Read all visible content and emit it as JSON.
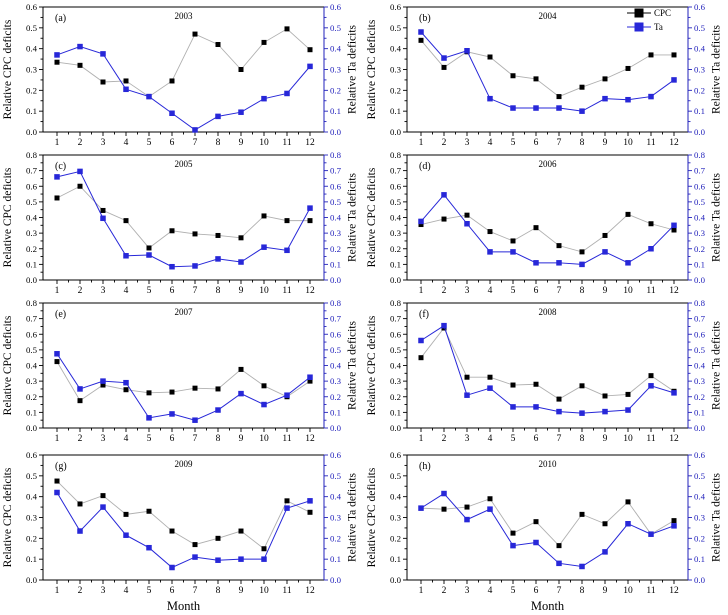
{
  "figure": {
    "xlabel": "Month",
    "left_ylabel": "Relative CPC deficits",
    "right_ylabel": "Relative Ta deficits",
    "colors": {
      "frame": "#000000",
      "cpc_marker": "#000000",
      "cpc_line": "#b0b0b0",
      "ta_series": "#2727d8",
      "right_axis_blue": "#2222bb",
      "background": "#ffffff"
    },
    "legend": [
      {
        "label": "CPC",
        "marker_color": "#000000",
        "line_color": "#000000"
      },
      {
        "label": "Ta",
        "marker_color": "#2727d8",
        "line_color": "#2727d8"
      }
    ]
  },
  "chart_data": [
    {
      "type": "line",
      "panel": "(a)",
      "title": "2003",
      "legend": false,
      "x": [
        1,
        2,
        3,
        4,
        5,
        6,
        7,
        8,
        9,
        10,
        11,
        12
      ],
      "ylim": [
        0,
        0.6
      ],
      "yticks": [
        "0.0",
        "0.1",
        "0.2",
        "0.3",
        "0.4",
        "0.5",
        "0.6"
      ],
      "series": [
        {
          "name": "CPC",
          "values": [
            0.335,
            0.32,
            0.24,
            0.245,
            0.17,
            0.245,
            0.47,
            0.42,
            0.3,
            0.43,
            0.495,
            0.395
          ]
        },
        {
          "name": "Ta",
          "values": [
            0.37,
            0.41,
            0.375,
            0.205,
            0.17,
            0.09,
            0.01,
            0.075,
            0.095,
            0.16,
            0.185,
            0.315
          ]
        }
      ]
    },
    {
      "type": "line",
      "panel": "(b)",
      "title": "2004",
      "legend": true,
      "x": [
        1,
        2,
        3,
        4,
        5,
        6,
        7,
        8,
        9,
        10,
        11,
        12
      ],
      "ylim": [
        0,
        0.6
      ],
      "yticks": [
        "0.0",
        "0.1",
        "0.2",
        "0.3",
        "0.4",
        "0.5",
        "0.6"
      ],
      "series": [
        {
          "name": "CPC",
          "values": [
            0.44,
            0.31,
            0.385,
            0.36,
            0.27,
            0.255,
            0.17,
            0.215,
            0.255,
            0.305,
            0.37,
            0.37
          ]
        },
        {
          "name": "Ta",
          "values": [
            0.48,
            0.355,
            0.39,
            0.16,
            0.115,
            0.115,
            0.115,
            0.1,
            0.16,
            0.155,
            0.17,
            0.25
          ]
        }
      ]
    },
    {
      "type": "line",
      "panel": "(c)",
      "title": "2005",
      "legend": false,
      "x": [
        1,
        2,
        3,
        4,
        5,
        6,
        7,
        8,
        9,
        10,
        11,
        12
      ],
      "ylim": [
        0,
        0.8
      ],
      "yticks": [
        "0.0",
        "0.1",
        "0.2",
        "0.3",
        "0.4",
        "0.5",
        "0.6",
        "0.7",
        "0.8"
      ],
      "series": [
        {
          "name": "CPC",
          "values": [
            0.525,
            0.6,
            0.445,
            0.38,
            0.205,
            0.315,
            0.295,
            0.285,
            0.27,
            0.41,
            0.38,
            0.38
          ]
        },
        {
          "name": "Ta",
          "values": [
            0.66,
            0.695,
            0.395,
            0.155,
            0.16,
            0.085,
            0.09,
            0.135,
            0.115,
            0.21,
            0.19,
            0.46
          ]
        }
      ]
    },
    {
      "type": "line",
      "panel": "(d)",
      "title": "2006",
      "legend": false,
      "x": [
        1,
        2,
        3,
        4,
        5,
        6,
        7,
        8,
        9,
        10,
        11,
        12
      ],
      "ylim": [
        0,
        0.8
      ],
      "yticks": [
        "0.0",
        "0.1",
        "0.2",
        "0.3",
        "0.4",
        "0.5",
        "0.6",
        "0.7",
        "0.8"
      ],
      "series": [
        {
          "name": "CPC",
          "values": [
            0.355,
            0.39,
            0.415,
            0.31,
            0.25,
            0.335,
            0.22,
            0.18,
            0.285,
            0.42,
            0.36,
            0.32
          ]
        },
        {
          "name": "Ta",
          "values": [
            0.375,
            0.545,
            0.36,
            0.18,
            0.18,
            0.11,
            0.11,
            0.1,
            0.18,
            0.11,
            0.2,
            0.35
          ]
        }
      ]
    },
    {
      "type": "line",
      "panel": "(e)",
      "title": "2007",
      "legend": false,
      "x": [
        1,
        2,
        3,
        4,
        5,
        6,
        7,
        8,
        9,
        10,
        11,
        12
      ],
      "ylim": [
        0,
        0.8
      ],
      "yticks": [
        "0.0",
        "0.1",
        "0.2",
        "0.3",
        "0.4",
        "0.5",
        "0.6",
        "0.7",
        "0.8"
      ],
      "series": [
        {
          "name": "CPC",
          "values": [
            0.425,
            0.175,
            0.275,
            0.245,
            0.225,
            0.23,
            0.255,
            0.25,
            0.375,
            0.27,
            0.2,
            0.3
          ]
        },
        {
          "name": "Ta",
          "values": [
            0.475,
            0.25,
            0.3,
            0.29,
            0.065,
            0.09,
            0.05,
            0.115,
            0.22,
            0.15,
            0.21,
            0.325
          ]
        }
      ]
    },
    {
      "type": "line",
      "panel": "(f)",
      "title": "2008",
      "legend": false,
      "x": [
        1,
        2,
        3,
        4,
        5,
        6,
        7,
        8,
        9,
        10,
        11,
        12
      ],
      "ylim": [
        0,
        0.8
      ],
      "yticks": [
        "0.0",
        "0.1",
        "0.2",
        "0.3",
        "0.4",
        "0.5",
        "0.6",
        "0.7",
        "0.8"
      ],
      "series": [
        {
          "name": "CPC",
          "values": [
            0.45,
            0.64,
            0.325,
            0.325,
            0.275,
            0.28,
            0.185,
            0.27,
            0.205,
            0.215,
            0.335,
            0.235
          ]
        },
        {
          "name": "Ta",
          "values": [
            0.56,
            0.655,
            0.21,
            0.255,
            0.135,
            0.135,
            0.105,
            0.095,
            0.105,
            0.115,
            0.27,
            0.225
          ]
        }
      ]
    },
    {
      "type": "line",
      "panel": "(g)",
      "title": "2009",
      "legend": false,
      "x": [
        1,
        2,
        3,
        4,
        5,
        6,
        7,
        8,
        9,
        10,
        11,
        12
      ],
      "ylim": [
        0,
        0.6
      ],
      "yticks": [
        "0.0",
        "0.1",
        "0.2",
        "0.3",
        "0.4",
        "0.5",
        "0.6"
      ],
      "series": [
        {
          "name": "CPC",
          "values": [
            0.475,
            0.365,
            0.405,
            0.315,
            0.33,
            0.235,
            0.17,
            0.2,
            0.235,
            0.15,
            0.38,
            0.325
          ]
        },
        {
          "name": "Ta",
          "values": [
            0.42,
            0.235,
            0.35,
            0.215,
            0.155,
            0.06,
            0.11,
            0.095,
            0.1,
            0.1,
            0.345,
            0.38
          ]
        }
      ]
    },
    {
      "type": "line",
      "panel": "(h)",
      "title": "2010",
      "legend": false,
      "x": [
        1,
        2,
        3,
        4,
        5,
        6,
        7,
        8,
        9,
        10,
        11,
        12
      ],
      "ylim": [
        0,
        0.6
      ],
      "yticks": [
        "0.0",
        "0.1",
        "0.2",
        "0.3",
        "0.4",
        "0.5",
        "0.6"
      ],
      "series": [
        {
          "name": "CPC",
          "values": [
            0.345,
            0.34,
            0.35,
            0.39,
            0.225,
            0.28,
            0.165,
            0.315,
            0.27,
            0.375,
            0.22,
            0.285
          ]
        },
        {
          "name": "Ta",
          "values": [
            0.345,
            0.415,
            0.29,
            0.34,
            0.165,
            0.18,
            0.08,
            0.065,
            0.135,
            0.27,
            0.22,
            0.26
          ]
        }
      ]
    }
  ]
}
